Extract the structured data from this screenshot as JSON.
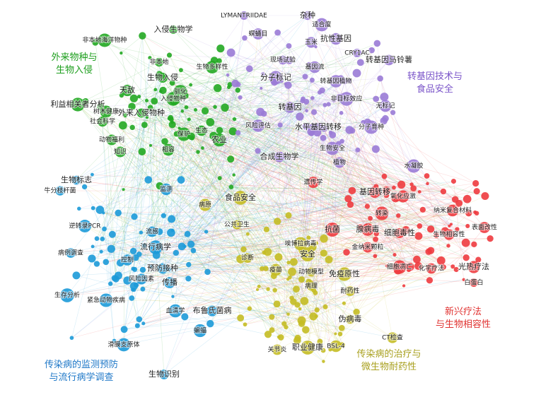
{
  "clusters": [
    {
      "label": "外来物种与\n生物入侵",
      "color": "#22a822",
      "label_color": "#1c9e1c",
      "nodes": [
        "非本地海洋物种",
        "入侵生物学",
        "非本地",
        "生物多样性",
        "利益相关者分析",
        "树木健康",
        "入侵物种",
        "外来入侵物种",
        "社会科学",
        "动物福利",
        "生物入侵",
        "保护",
        "相容",
        "农业",
        "驯化",
        "知识",
        "天敌",
        "生态"
      ]
    },
    {
      "label": "转基因技术与\n食品安全",
      "color": "#9a7bd6",
      "label_color": "#7b55c9",
      "nodes": [
        "LYMANTRIIDAE",
        "杂种",
        "适合度",
        "螟蛹目",
        "抗性基因",
        "玉米",
        "CRY1AC",
        "转基因马铃薯",
        "现场试验",
        "基因流",
        "分子标记",
        "转基因植物",
        "非目标效应",
        "转基因",
        "无标记",
        "风险评估",
        "水平基因转移",
        "分子育种",
        "生物安全",
        "合成生物学",
        "植物",
        "水凝胶"
      ]
    },
    {
      "label": "新兴疗法\n与生物相容性",
      "color": "#ee3b3f",
      "label_color": "#e0312f",
      "nodes": [
        "遗传学",
        "基因转移",
        "氧化应激",
        "纳米复合材料",
        "细胞毒性",
        "生物相容性",
        "表面改性",
        "光热疗法",
        "化学疗法",
        "白蛋白",
        "腺病毒",
        "金纳米颗粒",
        "细胞凋亡",
        "抗菌",
        "转染"
      ]
    },
    {
      "label": "传染病的治疗与\n微生物耐药性",
      "color": "#c4bd24",
      "label_color": "#a8a01e",
      "nodes": [
        "公共卫生",
        "食品安全",
        "诊断",
        "埃博拉病毒",
        "安全",
        "疫苗",
        "动物模型",
        "免疫原性",
        "耐药性",
        "病理",
        "职业健康",
        "BSL-4",
        "关节炎",
        "伪病毒",
        "CT检查",
        "病原"
      ]
    },
    {
      "label": "传染病的监测预防\n与流行病学调查",
      "color": "#1c9ad8",
      "label_color": "#1f78c8",
      "nodes": [
        "牛分枝杆菌",
        "生物标志",
        "监测",
        "流感",
        "流行病学",
        "控制",
        "风险因素",
        "预防接种",
        "病例调查",
        "逆转录PCR",
        "传播",
        "血清学",
        "紧急动物疾病",
        "布鲁氏菌病",
        "生存分析",
        "滑膜支原体",
        "生物识别",
        "蝙蝠"
      ]
    }
  ]
}
